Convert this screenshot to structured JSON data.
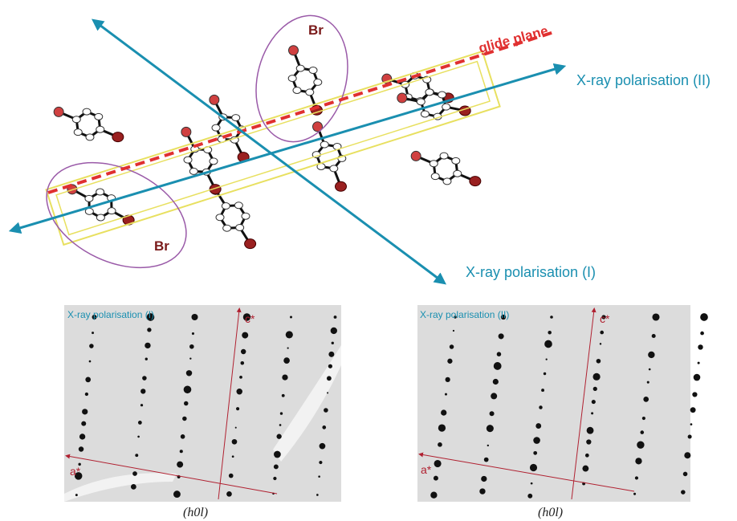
{
  "top": {
    "glide_plane": "glide plane",
    "polarisation_2": "X-ray polarisation (II)",
    "polarisation_1": "X-ray polarisation (I)",
    "br_upper": "Br",
    "br_lower": "Br"
  },
  "panels": [
    {
      "title": "X-ray polarisation (I)",
      "c_axis": "c*",
      "a_axis": "a*",
      "caption": "(h0l)"
    },
    {
      "title": "X-ray polarisation (II)",
      "c_axis": "c*",
      "a_axis": "a*",
      "caption": "(h0l)"
    }
  ]
}
